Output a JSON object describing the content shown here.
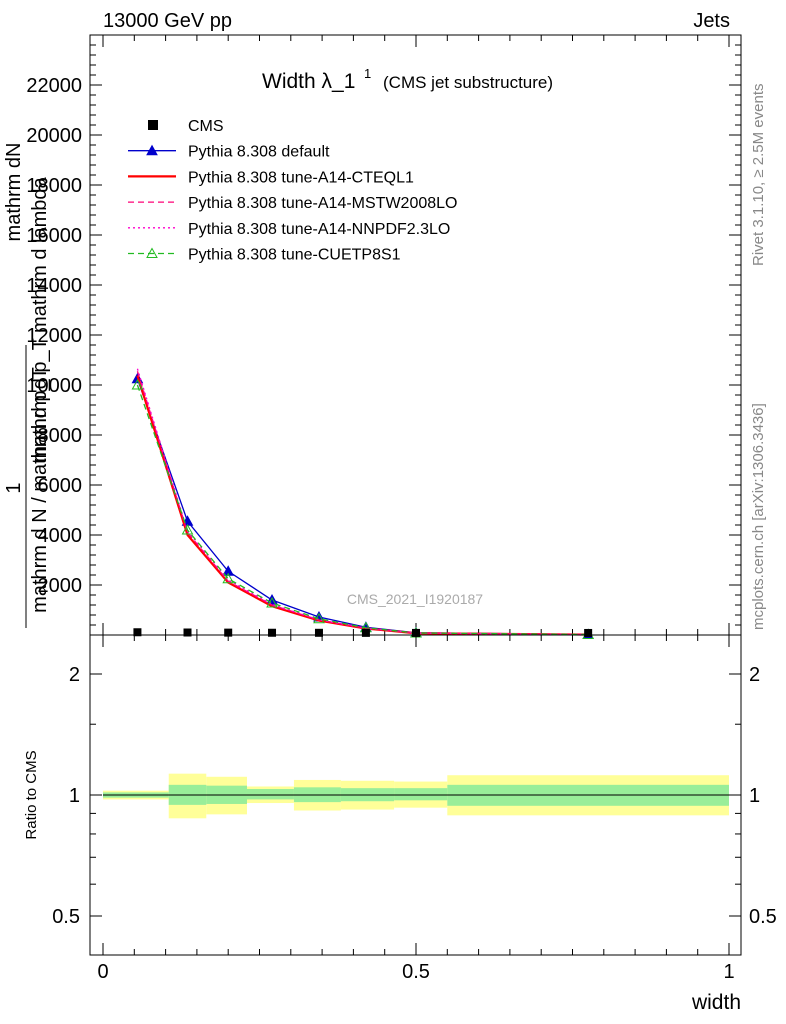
{
  "header": {
    "left": "13000 GeV pp",
    "right": "Jets"
  },
  "side_labels": {
    "rivet": "Rivet 3.1.10, ≥ 2.5M events",
    "mcplots": "mcplots.cern.ch [arXiv:1306.3436]"
  },
  "watermark": "CMS_2021_I1920187",
  "chart_data": {
    "type": "line",
    "title_main": "Width λ_1",
    "title_sup": "1",
    "title_sub": "(CMS jet substructure)",
    "ylabel_lines": [
      "mathrm dN",
      "mathrm d p_T mathrm d lambda",
      "1",
      "mathrm d N / mathrm d p_T"
    ],
    "xlabel": "width",
    "xlim": [
      0,
      1
    ],
    "ylim": [
      0,
      24000
    ],
    "yticks": [
      2000,
      4000,
      6000,
      8000,
      10000,
      12000,
      14000,
      16000,
      18000,
      20000,
      22000
    ],
    "xticks": [
      0,
      0.5,
      1
    ],
    "xtick_labels": [
      "0",
      "0.5",
      "1"
    ],
    "x": [
      0.055,
      0.135,
      0.2,
      0.27,
      0.345,
      0.42,
      0.5,
      0.775
    ],
    "data": {
      "name": "CMS",
      "values": [
        30,
        20,
        15,
        10,
        8,
        5,
        3,
        1
      ]
    },
    "series": [
      {
        "name": "Pythia 8.308 default",
        "color": "#0000cc",
        "style": "solid",
        "marker": "triangle-filled",
        "values": [
          10250,
          4550,
          2550,
          1400,
          720,
          310,
          90,
          20
        ]
      },
      {
        "name": "Pythia 8.308 tune-A14-CTEQL1",
        "color": "#ff0000",
        "style": "solid-thick",
        "marker": "none",
        "values": [
          10380,
          4000,
          2100,
          1150,
          580,
          260,
          70,
          18
        ]
      },
      {
        "name": "Pythia 8.308 tune-A14-MSTW2008LO",
        "color": "#ff0077",
        "style": "dashed",
        "marker": "none",
        "values": [
          10550,
          4100,
          2150,
          1200,
          600,
          270,
          75,
          18
        ]
      },
      {
        "name": "Pythia 8.308 tune-A14-NNPDF2.3LO",
        "color": "#ff00cc",
        "style": "dotted",
        "marker": "none",
        "values": [
          10650,
          4150,
          2200,
          1220,
          610,
          275,
          75,
          18
        ]
      },
      {
        "name": "Pythia 8.308 tune-CUETP8S1",
        "color": "#22bb22",
        "style": "dashed",
        "marker": "triangle-open",
        "values": [
          10000,
          4200,
          2250,
          1280,
          650,
          290,
          80,
          20
        ]
      }
    ],
    "ratio": {
      "ylabel": "Ratio to CMS",
      "yticks": [
        0.5,
        1,
        2
      ],
      "ytick_labels": [
        "0.5",
        "1",
        "2"
      ],
      "bins": [
        {
          "x0": 0.0,
          "x1": 0.105,
          "inner": [
            0.985,
            1.015
          ],
          "outer": [
            0.975,
            1.025
          ]
        },
        {
          "x0": 0.105,
          "x1": 0.165,
          "inner": [
            0.945,
            1.06
          ],
          "outer": [
            0.875,
            1.13
          ]
        },
        {
          "x0": 0.165,
          "x1": 0.23,
          "inner": [
            0.95,
            1.055
          ],
          "outer": [
            0.895,
            1.11
          ]
        },
        {
          "x0": 0.23,
          "x1": 0.305,
          "inner": [
            0.975,
            1.035
          ],
          "outer": [
            0.955,
            1.05
          ]
        },
        {
          "x0": 0.305,
          "x1": 0.38,
          "inner": [
            0.96,
            1.045
          ],
          "outer": [
            0.915,
            1.09
          ]
        },
        {
          "x0": 0.38,
          "x1": 0.465,
          "inner": [
            0.965,
            1.04
          ],
          "outer": [
            0.92,
            1.085
          ]
        },
        {
          "x0": 0.465,
          "x1": 0.55,
          "inner": [
            0.97,
            1.04
          ],
          "outer": [
            0.93,
            1.08
          ]
        },
        {
          "x0": 0.55,
          "x1": 1.0,
          "inner": [
            0.94,
            1.06
          ],
          "outer": [
            0.89,
            1.12
          ]
        }
      ]
    }
  }
}
